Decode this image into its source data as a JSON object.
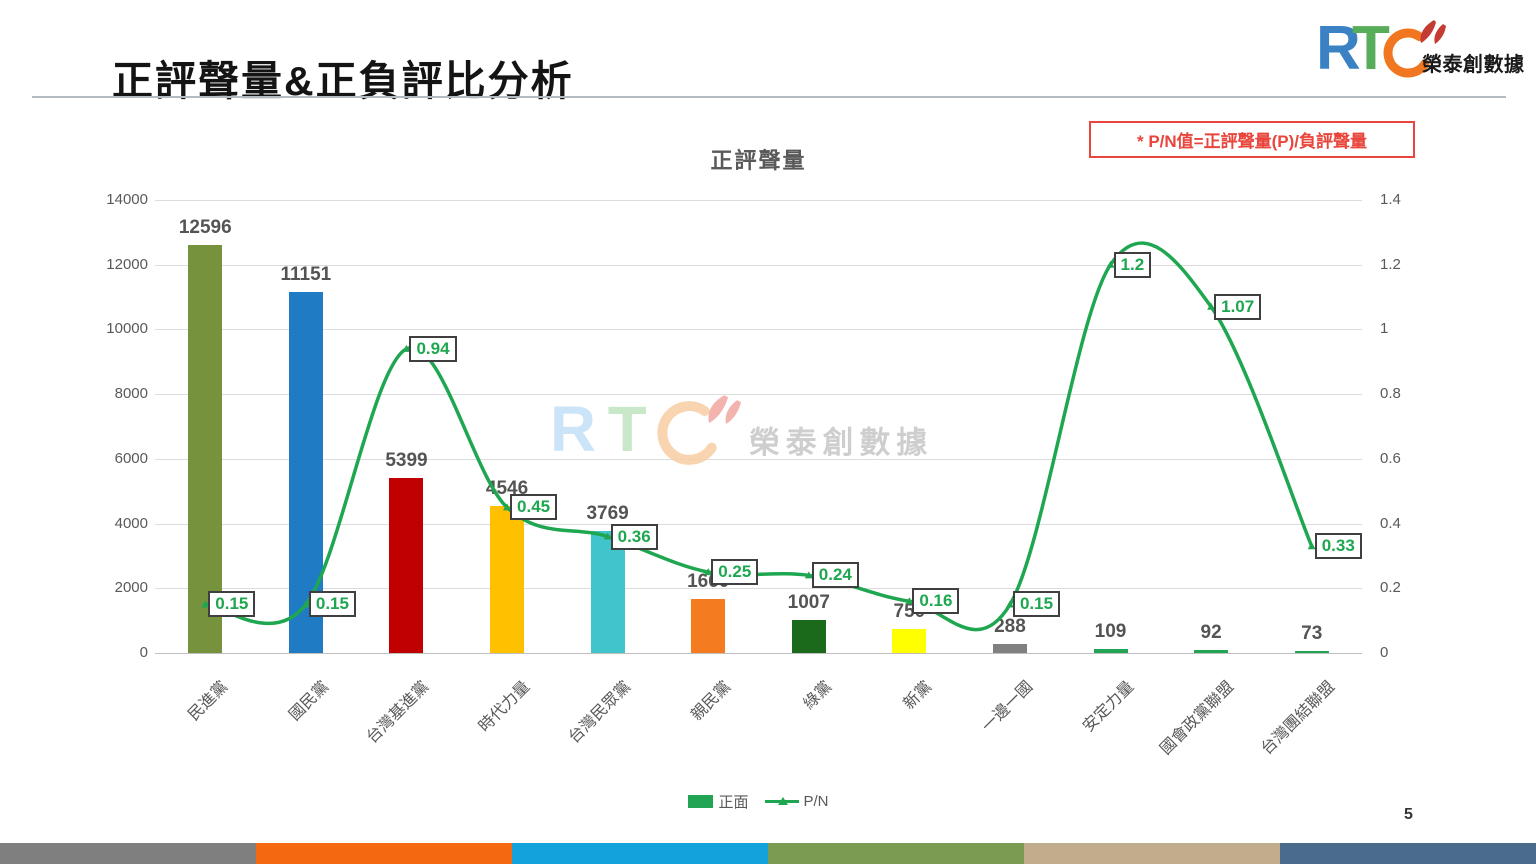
{
  "slide": {
    "title": "正評聲量&正負評比分析",
    "page_number": "5",
    "note": "* P/N值=正評聲量(P)/負評聲量",
    "logo": {
      "r": "R",
      "t": "T",
      "name": "榮泰創數據"
    },
    "footer_colors": [
      "#7f7f7f",
      "#f4690f",
      "#12a3dd",
      "#7a9b51",
      "#c1ad8c",
      "#4b6b8d"
    ]
  },
  "chart_data": {
    "type": "bar",
    "combo": "bar+line",
    "title": "正評聲量",
    "categories": [
      "民進黨",
      "國民黨",
      "台灣基進黨",
      "時代力量",
      "台灣民眾黨",
      "親民黨",
      "綠黨",
      "新黨",
      "一邊一國",
      "安定力量",
      "國會政黨聯盟",
      "台灣團結聯盟"
    ],
    "series": [
      {
        "name": "正面",
        "type": "bar",
        "axis": "left",
        "values": [
          12596,
          11151,
          5399,
          4546,
          3769,
          1660,
          1007,
          750,
          288,
          109,
          92,
          73
        ],
        "labels": [
          "12596",
          "11151",
          "5399",
          "4546",
          "3769",
          "1660",
          "1007",
          "750",
          "288",
          "109",
          "92",
          "73"
        ],
        "colors": [
          "#76923c",
          "#1f7bc4",
          "#c00000",
          "#ffc000",
          "#42c4cc",
          "#f47b20",
          "#1b691b",
          "#ffff00",
          "#808080",
          "#21a453",
          "#21a453",
          "#21a453"
        ]
      },
      {
        "name": "P/N",
        "type": "line",
        "axis": "right",
        "values": [
          0.15,
          0.15,
          0.94,
          0.45,
          0.36,
          0.25,
          0.24,
          0.16,
          0.15,
          1.2,
          1.07,
          0.33
        ],
        "labels": [
          "0.15",
          "0.15",
          "0.94",
          "0.45",
          "0.36",
          "0.25",
          "0.24",
          "0.16",
          "0.15",
          "1.2",
          "1.07",
          "0.33"
        ],
        "color": "#1ea750"
      }
    ],
    "left_axis": {
      "min": 0,
      "max": 14000,
      "step": 2000,
      "ticks": [
        "14000",
        "12000",
        "10000",
        "8000",
        "6000",
        "4000",
        "2000",
        "0"
      ]
    },
    "right_axis": {
      "min": 0,
      "max": 1.4,
      "step": 0.2,
      "ticks": [
        "1.4",
        "1.2",
        "1",
        "0.8",
        "0.6",
        "0.4",
        "0.2",
        "0"
      ]
    },
    "legend": [
      {
        "label": "正面",
        "swatch": "square",
        "color": "#21a453"
      },
      {
        "label": "P/N",
        "swatch": "line",
        "color": "#1ea750"
      }
    ],
    "grid": "horizontal",
    "legend_position": "bottom"
  }
}
